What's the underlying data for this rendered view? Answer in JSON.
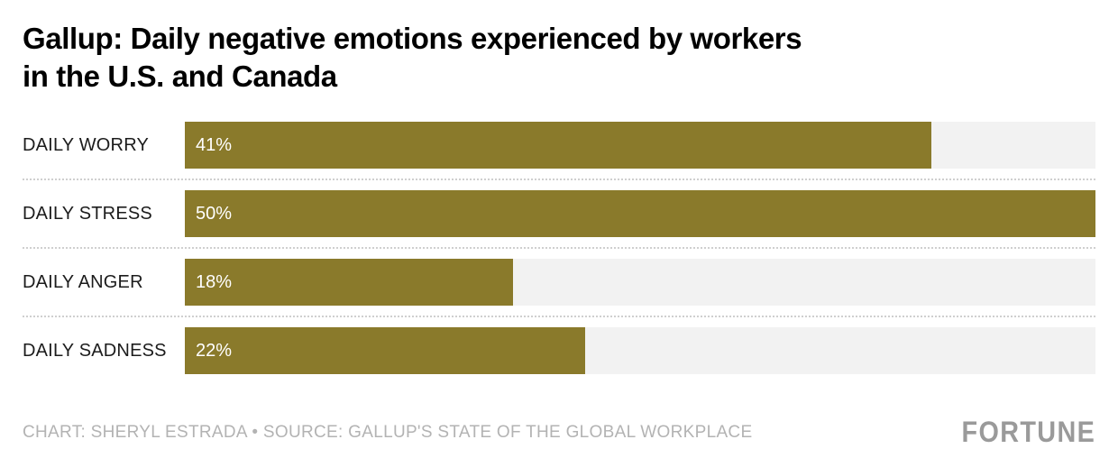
{
  "title": {
    "full": "Gallup: Daily negative emotions experienced by workers in the U.S. and Canada",
    "line1": "Gallup: Daily negative emotions experienced by workers",
    "line2": "in the U.S. and Canada"
  },
  "footer": {
    "credit": "CHART: SHERYL ESTRADA • SOURCE: GALLUP'S STATE OF THE GLOBAL WORKPLACE",
    "brand": "FORTUNE"
  },
  "colors": {
    "bar": "#8a7a2b",
    "track": "#f2f2f2",
    "category_text": "#1c1c1c",
    "value_text": "#ffffff",
    "footer_text": "#b3b3b3",
    "brand_text": "#9a9a9a",
    "divider": "#cfcfcf"
  },
  "chart_data": {
    "type": "bar",
    "orientation": "horizontal",
    "title": "Gallup: Daily negative emotions experienced by workers in the U.S. and Canada",
    "categories": [
      "DAILY WORRY",
      "DAILY STRESS",
      "DAILY ANGER",
      "DAILY SADNESS"
    ],
    "values": [
      41,
      50,
      18,
      22
    ],
    "value_labels": [
      "41%",
      "50%",
      "18%",
      "22%"
    ],
    "unit": "%",
    "xlim": [
      0,
      50
    ],
    "grid": false,
    "legend": false,
    "value_label_position": "inside-left"
  }
}
